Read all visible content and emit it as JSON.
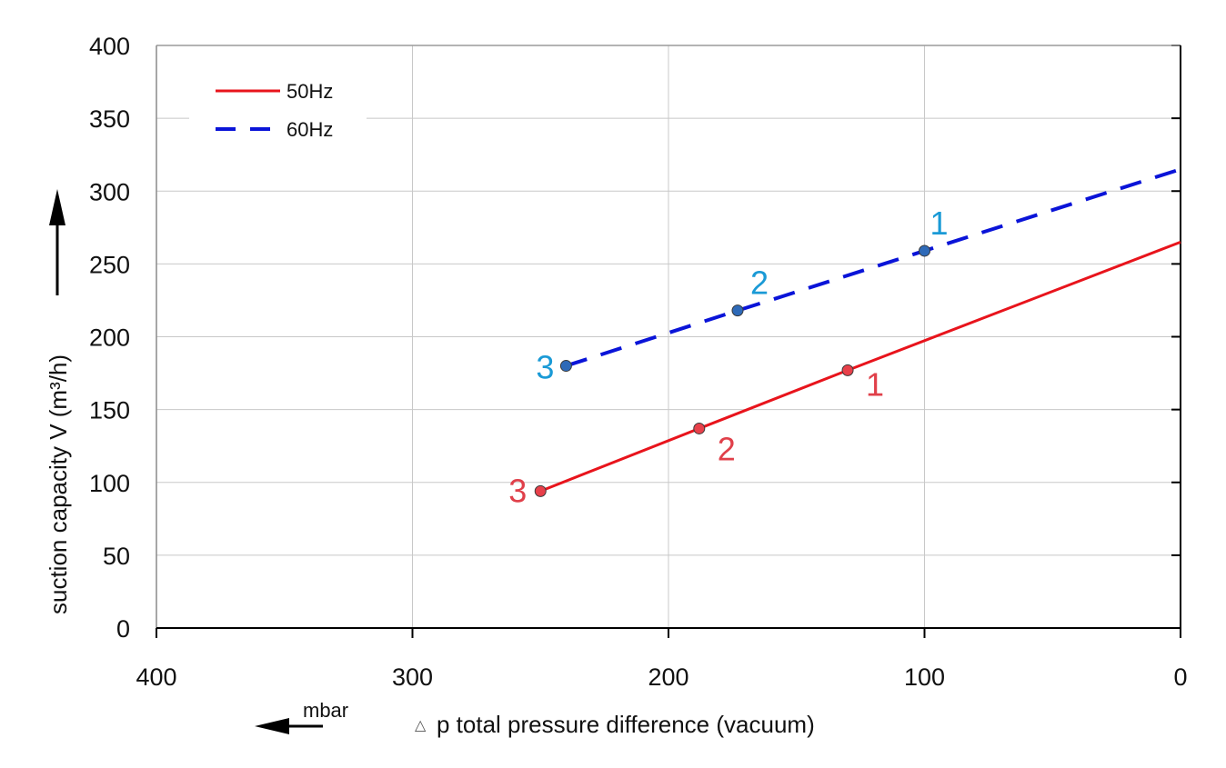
{
  "chart_data": {
    "type": "line",
    "title": "",
    "xlabel": "p total pressure difference (vacuum)",
    "xlabel_symbol": "△",
    "xunit": "mbar",
    "ylabel": "suction capacity V (m³/h)",
    "xlim": [
      400,
      0
    ],
    "ylim": [
      0,
      400
    ],
    "x_reversed": true,
    "grid": true,
    "legend_position": "top-left",
    "x_ticks": [
      "400",
      "300",
      "200",
      "100",
      "0"
    ],
    "y_ticks": [
      "0",
      "50",
      "100",
      "150",
      "200",
      "250",
      "300",
      "350",
      "400"
    ],
    "series": [
      {
        "name": "50Hz",
        "color": "#e8141c",
        "style": "solid",
        "x": [
          250,
          188,
          130,
          0
        ],
        "y": [
          94,
          137,
          177,
          265
        ],
        "points": [
          {
            "x": 130,
            "y": 177,
            "label": "1"
          },
          {
            "x": 188,
            "y": 137,
            "label": "2"
          },
          {
            "x": 250,
            "y": 94,
            "label": "3"
          }
        ],
        "marker_color": "#e8404a",
        "label_color": "#e0404a"
      },
      {
        "name": "60Hz",
        "color": "#0a14d8",
        "style": "dashed",
        "x": [
          240,
          173,
          155,
          100,
          0
        ],
        "y": [
          180,
          218,
          228,
          259,
          315
        ],
        "points": [
          {
            "x": 100,
            "y": 259,
            "label": "1"
          },
          {
            "x": 173,
            "y": 218,
            "label": "2"
          },
          {
            "x": 240,
            "y": 180,
            "label": "3"
          }
        ],
        "marker_color": "#2e6ab8",
        "label_color": "#1a9ad6"
      }
    ]
  }
}
